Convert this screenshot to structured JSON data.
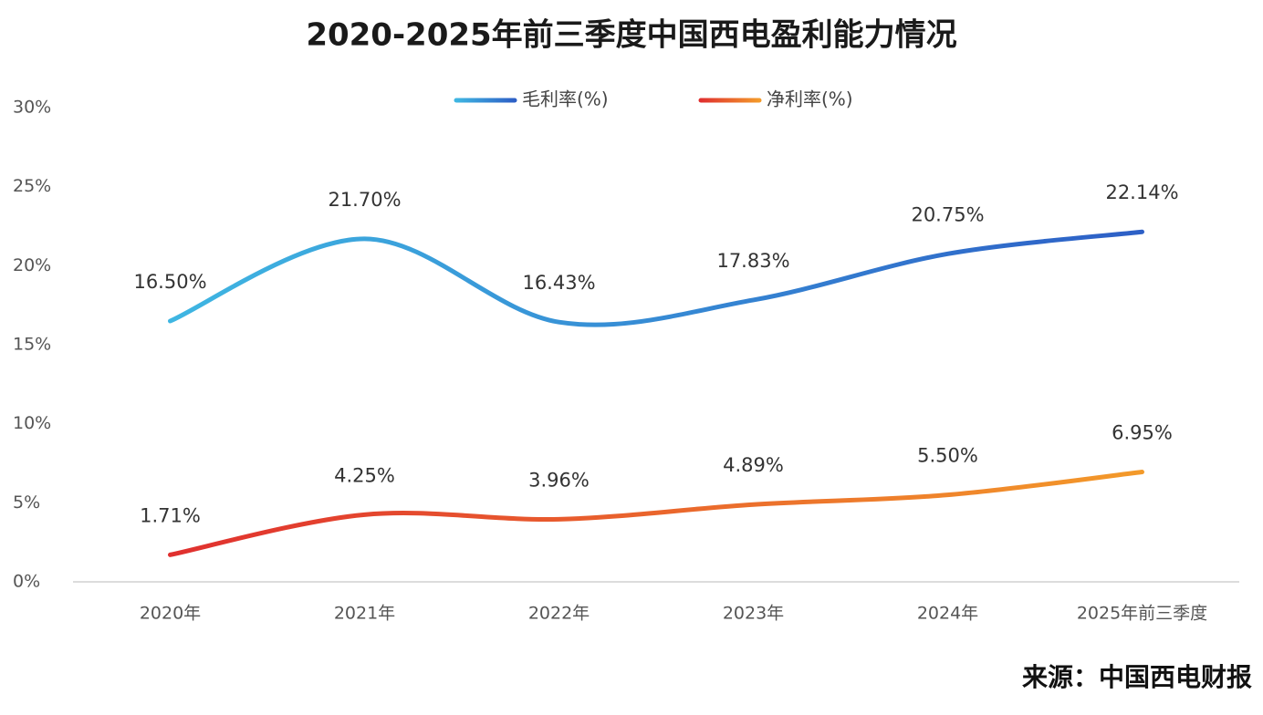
{
  "chart_data": {
    "type": "line",
    "title": "2020-2025年前三季度中国西电盈利能力情况",
    "categories": [
      "2020年",
      "2021年",
      "2022年",
      "2023年",
      "2024年",
      "2025年前三季度"
    ],
    "series": [
      {
        "name": "毛利率(%)",
        "color": "#3fb6e2",
        "gradient": [
          "#3fb6e2",
          "#2d5fc6"
        ],
        "values": [
          16.5,
          21.7,
          16.43,
          17.83,
          20.75,
          22.14
        ],
        "value_labels": [
          "16.50%",
          "21.70%",
          "16.43%",
          "17.83%",
          "20.75%",
          "22.14%"
        ]
      },
      {
        "name": "净利率(%)",
        "color": "#e8452c",
        "gradient": [
          "#e0302f",
          "#f39a2a"
        ],
        "values": [
          1.71,
          4.25,
          3.96,
          4.89,
          5.5,
          6.95
        ],
        "value_labels": [
          "1.71%",
          "4.25%",
          "3.96%",
          "4.89%",
          "5.50%",
          "6.95%"
        ]
      }
    ],
    "ylim": [
      0,
      30
    ],
    "yticks": [
      {
        "value": 0,
        "label": "0%"
      },
      {
        "value": 5,
        "label": "5%"
      },
      {
        "value": 10,
        "label": "10%"
      },
      {
        "value": 15,
        "label": "15%"
      },
      {
        "value": 20,
        "label": "20%"
      },
      {
        "value": 25,
        "label": "25%"
      },
      {
        "value": 30,
        "label": "30%"
      }
    ],
    "grid": false,
    "smooth": true,
    "legend": "top",
    "source": "来源：中国西电财报"
  }
}
